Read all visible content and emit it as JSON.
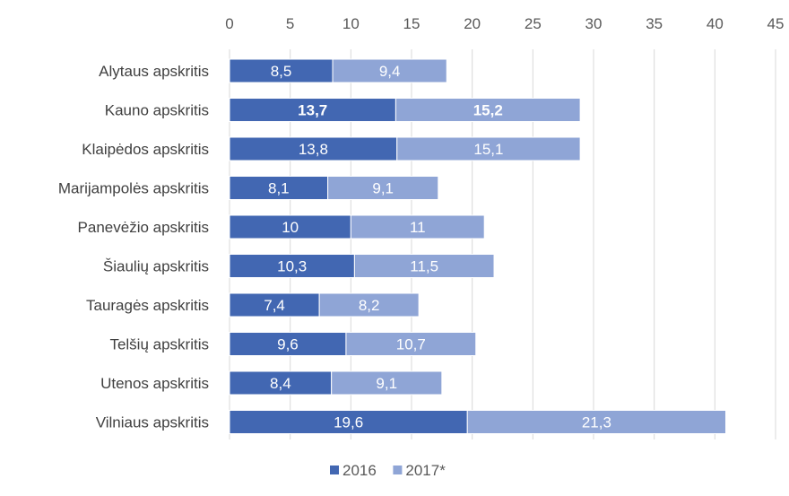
{
  "chart_data": {
    "type": "bar",
    "orientation": "horizontal",
    "stacked": true,
    "categories": [
      "Alytaus apskritis",
      "Kauno apskritis",
      "Klaipėdos apskritis",
      "Marijampolės apskritis",
      "Panevėžio apskritis",
      "Šiaulių apskritis",
      "Tauragės apskritis",
      "Telšių apskritis",
      "Utenos apskritis",
      "Vilniaus apskritis"
    ],
    "series": [
      {
        "name": "2016",
        "color": "#4267b2",
        "values": [
          8.5,
          13.7,
          13.8,
          8.1,
          10,
          10.3,
          7.4,
          9.6,
          8.4,
          19.6
        ],
        "labels": [
          "8,5",
          "13,7",
          "13,8",
          "8,1",
          "10",
          "10,3",
          "7,4",
          "9,6",
          "8,4",
          "19,6"
        ]
      },
      {
        "name": "2017*",
        "color": "#8fa5d6",
        "values": [
          9.4,
          15.2,
          15.1,
          9.1,
          11,
          11.5,
          8.2,
          10.7,
          9.1,
          21.3
        ],
        "labels": [
          "9,4",
          "15,2",
          "15,1",
          "9,1",
          "11",
          "11,5",
          "8,2",
          "10,7",
          "9,1",
          "21,3"
        ]
      }
    ],
    "bold_category": "Kauno apskritis",
    "xlim": [
      0,
      45
    ],
    "xticks": [
      0,
      5,
      10,
      15,
      20,
      25,
      30,
      35,
      40,
      45
    ],
    "x_axis_position": "top",
    "grid": true,
    "legend_position": "bottom",
    "title": "",
    "xlabel": "",
    "ylabel": ""
  }
}
